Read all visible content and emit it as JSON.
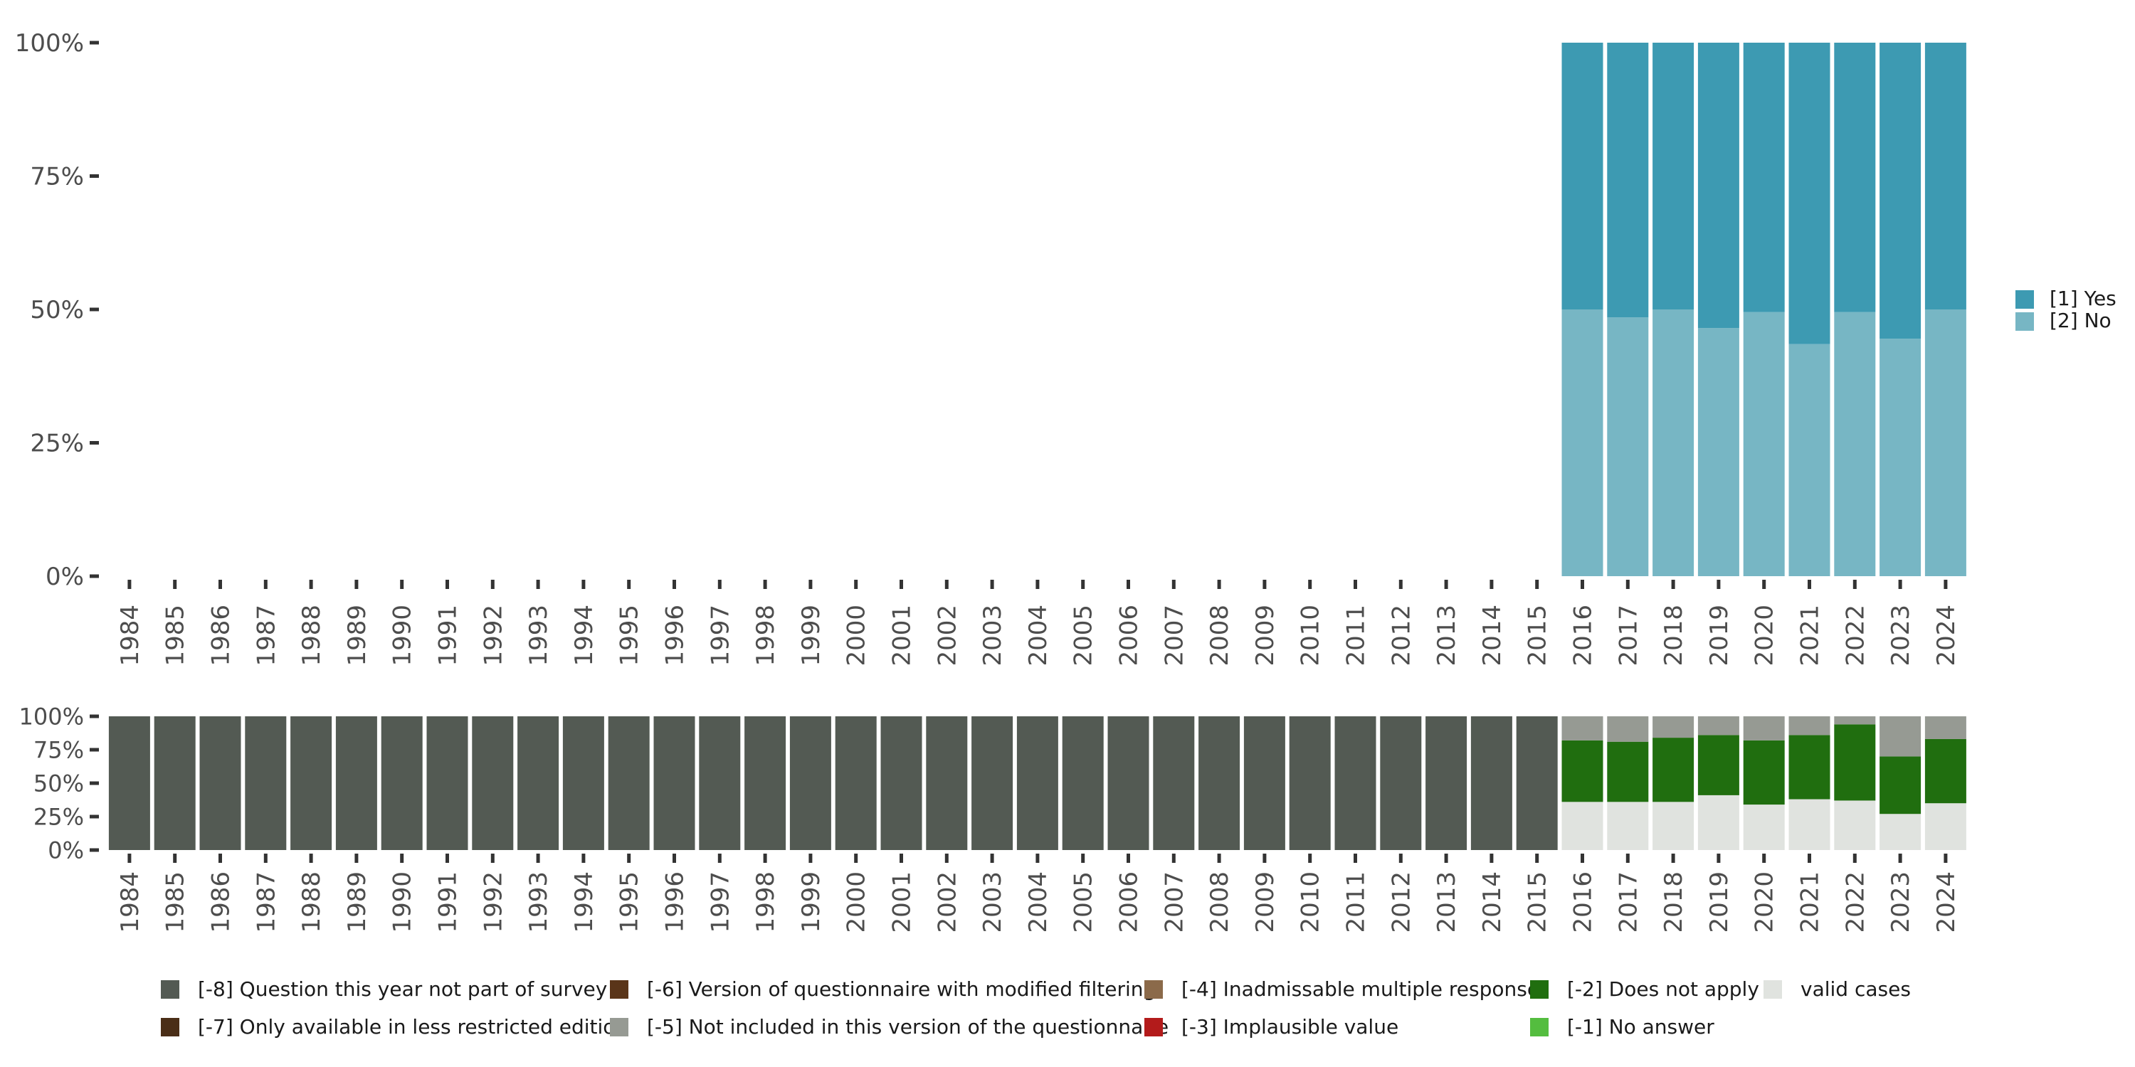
{
  "chart_data": [
    {
      "type": "bar",
      "stacked": true,
      "categories": [
        "1984",
        "1985",
        "1986",
        "1987",
        "1988",
        "1989",
        "1990",
        "1991",
        "1992",
        "1993",
        "1994",
        "1995",
        "1996",
        "1997",
        "1998",
        "1999",
        "2000",
        "2001",
        "2002",
        "2003",
        "2004",
        "2005",
        "2006",
        "2007",
        "2008",
        "2009",
        "2010",
        "2011",
        "2012",
        "2013",
        "2014",
        "2015",
        "2016",
        "2017",
        "2018",
        "2019",
        "2020",
        "2021",
        "2022",
        "2023",
        "2024"
      ],
      "ylim": [
        0,
        100
      ],
      "yticks": [
        "0%",
        "25%",
        "50%",
        "75%",
        "100%"
      ],
      "series": [
        {
          "name": "[2] No",
          "color": "#77b6c4",
          "values": [
            null,
            null,
            null,
            null,
            null,
            null,
            null,
            null,
            null,
            null,
            null,
            null,
            null,
            null,
            null,
            null,
            null,
            null,
            null,
            null,
            null,
            null,
            null,
            null,
            null,
            null,
            null,
            null,
            null,
            null,
            null,
            null,
            50,
            48.5,
            50,
            46.5,
            49.5,
            43.5,
            49.5,
            44.5,
            50
          ]
        },
        {
          "name": "[1] Yes",
          "color": "#3d9ab2",
          "values": [
            null,
            null,
            null,
            null,
            null,
            null,
            null,
            null,
            null,
            null,
            null,
            null,
            null,
            null,
            null,
            null,
            null,
            null,
            null,
            null,
            null,
            null,
            null,
            null,
            null,
            null,
            null,
            null,
            null,
            null,
            null,
            null,
            50,
            51.5,
            50,
            53.5,
            50.5,
            56.5,
            50.5,
            55.5,
            50
          ]
        }
      ],
      "legend": {
        "position": "right",
        "items": [
          "[1] Yes",
          "[2] No"
        ]
      }
    },
    {
      "type": "bar",
      "stacked": true,
      "categories": [
        "1984",
        "1985",
        "1986",
        "1987",
        "1988",
        "1989",
        "1990",
        "1991",
        "1992",
        "1993",
        "1994",
        "1995",
        "1996",
        "1997",
        "1998",
        "1999",
        "2000",
        "2001",
        "2002",
        "2003",
        "2004",
        "2005",
        "2006",
        "2007",
        "2008",
        "2009",
        "2010",
        "2011",
        "2012",
        "2013",
        "2014",
        "2015",
        "2016",
        "2017",
        "2018",
        "2019",
        "2020",
        "2021",
        "2022",
        "2023",
        "2024"
      ],
      "ylim": [
        0,
        100
      ],
      "yticks": [
        "0%",
        "25%",
        "50%",
        "75%",
        "100%"
      ],
      "series": [
        {
          "name": "valid cases",
          "color": "#e0e3df",
          "values": [
            0,
            0,
            0,
            0,
            0,
            0,
            0,
            0,
            0,
            0,
            0,
            0,
            0,
            0,
            0,
            0,
            0,
            0,
            0,
            0,
            0,
            0,
            0,
            0,
            0,
            0,
            0,
            0,
            0,
            0,
            0,
            0,
            36,
            36,
            36,
            41,
            34,
            38,
            37,
            27,
            35
          ]
        },
        {
          "name": "[-2] Does not apply",
          "color": "#206e0f",
          "values": [
            0,
            0,
            0,
            0,
            0,
            0,
            0,
            0,
            0,
            0,
            0,
            0,
            0,
            0,
            0,
            0,
            0,
            0,
            0,
            0,
            0,
            0,
            0,
            0,
            0,
            0,
            0,
            0,
            0,
            0,
            0,
            0,
            46,
            45,
            48,
            45,
            48,
            48,
            57,
            43,
            48
          ]
        },
        {
          "name": "[-5] Not included in this version of the questionnaire",
          "color": "#969a93",
          "values": [
            0,
            0,
            0,
            0,
            0,
            0,
            0,
            0,
            0,
            0,
            0,
            0,
            0,
            0,
            0,
            0,
            0,
            0,
            0,
            0,
            0,
            0,
            0,
            0,
            0,
            0,
            0,
            0,
            0,
            0,
            0,
            0,
            18,
            19,
            16,
            14,
            18,
            14,
            6,
            30,
            17
          ]
        },
        {
          "name": "[-8] Question this year not part of survey",
          "color": "#535a53",
          "values": [
            100,
            100,
            100,
            100,
            100,
            100,
            100,
            100,
            100,
            100,
            100,
            100,
            100,
            100,
            100,
            100,
            100,
            100,
            100,
            100,
            100,
            100,
            100,
            100,
            100,
            100,
            100,
            100,
            100,
            100,
            100,
            100,
            0,
            0,
            0,
            0,
            0,
            0,
            0,
            0,
            0
          ]
        }
      ],
      "legend": {
        "position": "bottom",
        "items": [
          {
            "label": "[-8] Question this year not part of survey",
            "color": "#535a53"
          },
          {
            "label": "[-7] Only available in less restricted edition",
            "color": "#4a2e17"
          },
          {
            "label": "[-6] Version of questionnaire with modified filtering",
            "color": "#5a3519"
          },
          {
            "label": "[-5] Not included in this version of the questionnaire",
            "color": "#969a93"
          },
          {
            "label": "[-4] Inadmissable multiple response",
            "color": "#8b6a4a"
          },
          {
            "label": "[-3] Implausible value",
            "color": "#b31b1b"
          },
          {
            "label": "[-2] Does not apply",
            "color": "#206e0f"
          },
          {
            "label": "[-1] No answer",
            "color": "#54bd3f"
          },
          {
            "label": "valid cases",
            "color": "#e0e3df"
          }
        ]
      }
    }
  ]
}
